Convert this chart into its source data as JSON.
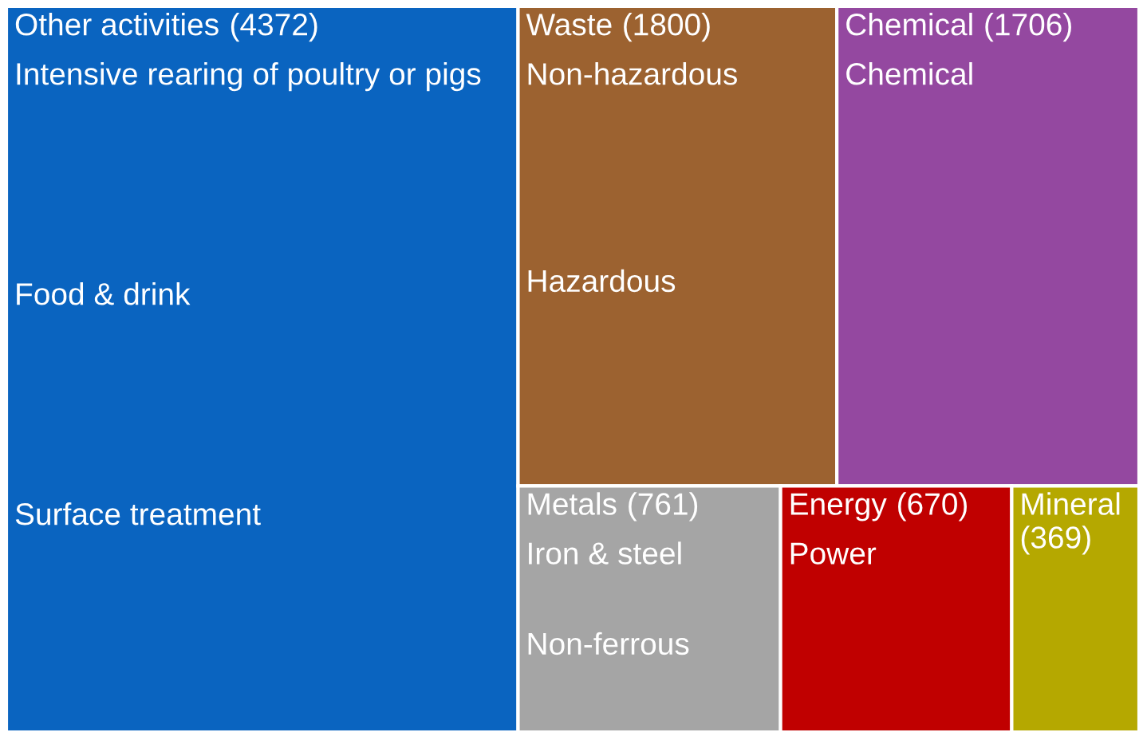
{
  "chart_data": {
    "type": "other",
    "categories": [
      "Other activities",
      "Waste",
      "Chemical",
      "Metals",
      "Energy",
      "Mineral"
    ],
    "values": [
      4372,
      1800,
      1706,
      761,
      670,
      369
    ],
    "colors": [
      "#0a64c0",
      "#9c6230",
      "#9448a0",
      "#a5a5a5",
      "#c00000",
      "#b5a800"
    ],
    "value_labels": [
      "(4372)",
      "(1800)",
      "(1706)",
      "(761)",
      "(670)",
      "(369)"
    ],
    "annotations": [
      {
        "text": "Intensive rearing of poultry or pigs",
        "x": "Other activities"
      },
      {
        "text": "Food & drink",
        "x": "Other activities"
      },
      {
        "text": "Surface treatment",
        "x": "Other activities"
      },
      {
        "text": "Non-hazardous",
        "x": "Waste"
      },
      {
        "text": "Hazardous",
        "x": "Waste"
      },
      {
        "text": "Chemical",
        "x": "Chemical"
      },
      {
        "text": "Iron & steel",
        "x": "Metals"
      },
      {
        "text": "Non-ferrous",
        "x": "Metals"
      },
      {
        "text": "Power",
        "x": "Energy"
      }
    ]
  }
}
